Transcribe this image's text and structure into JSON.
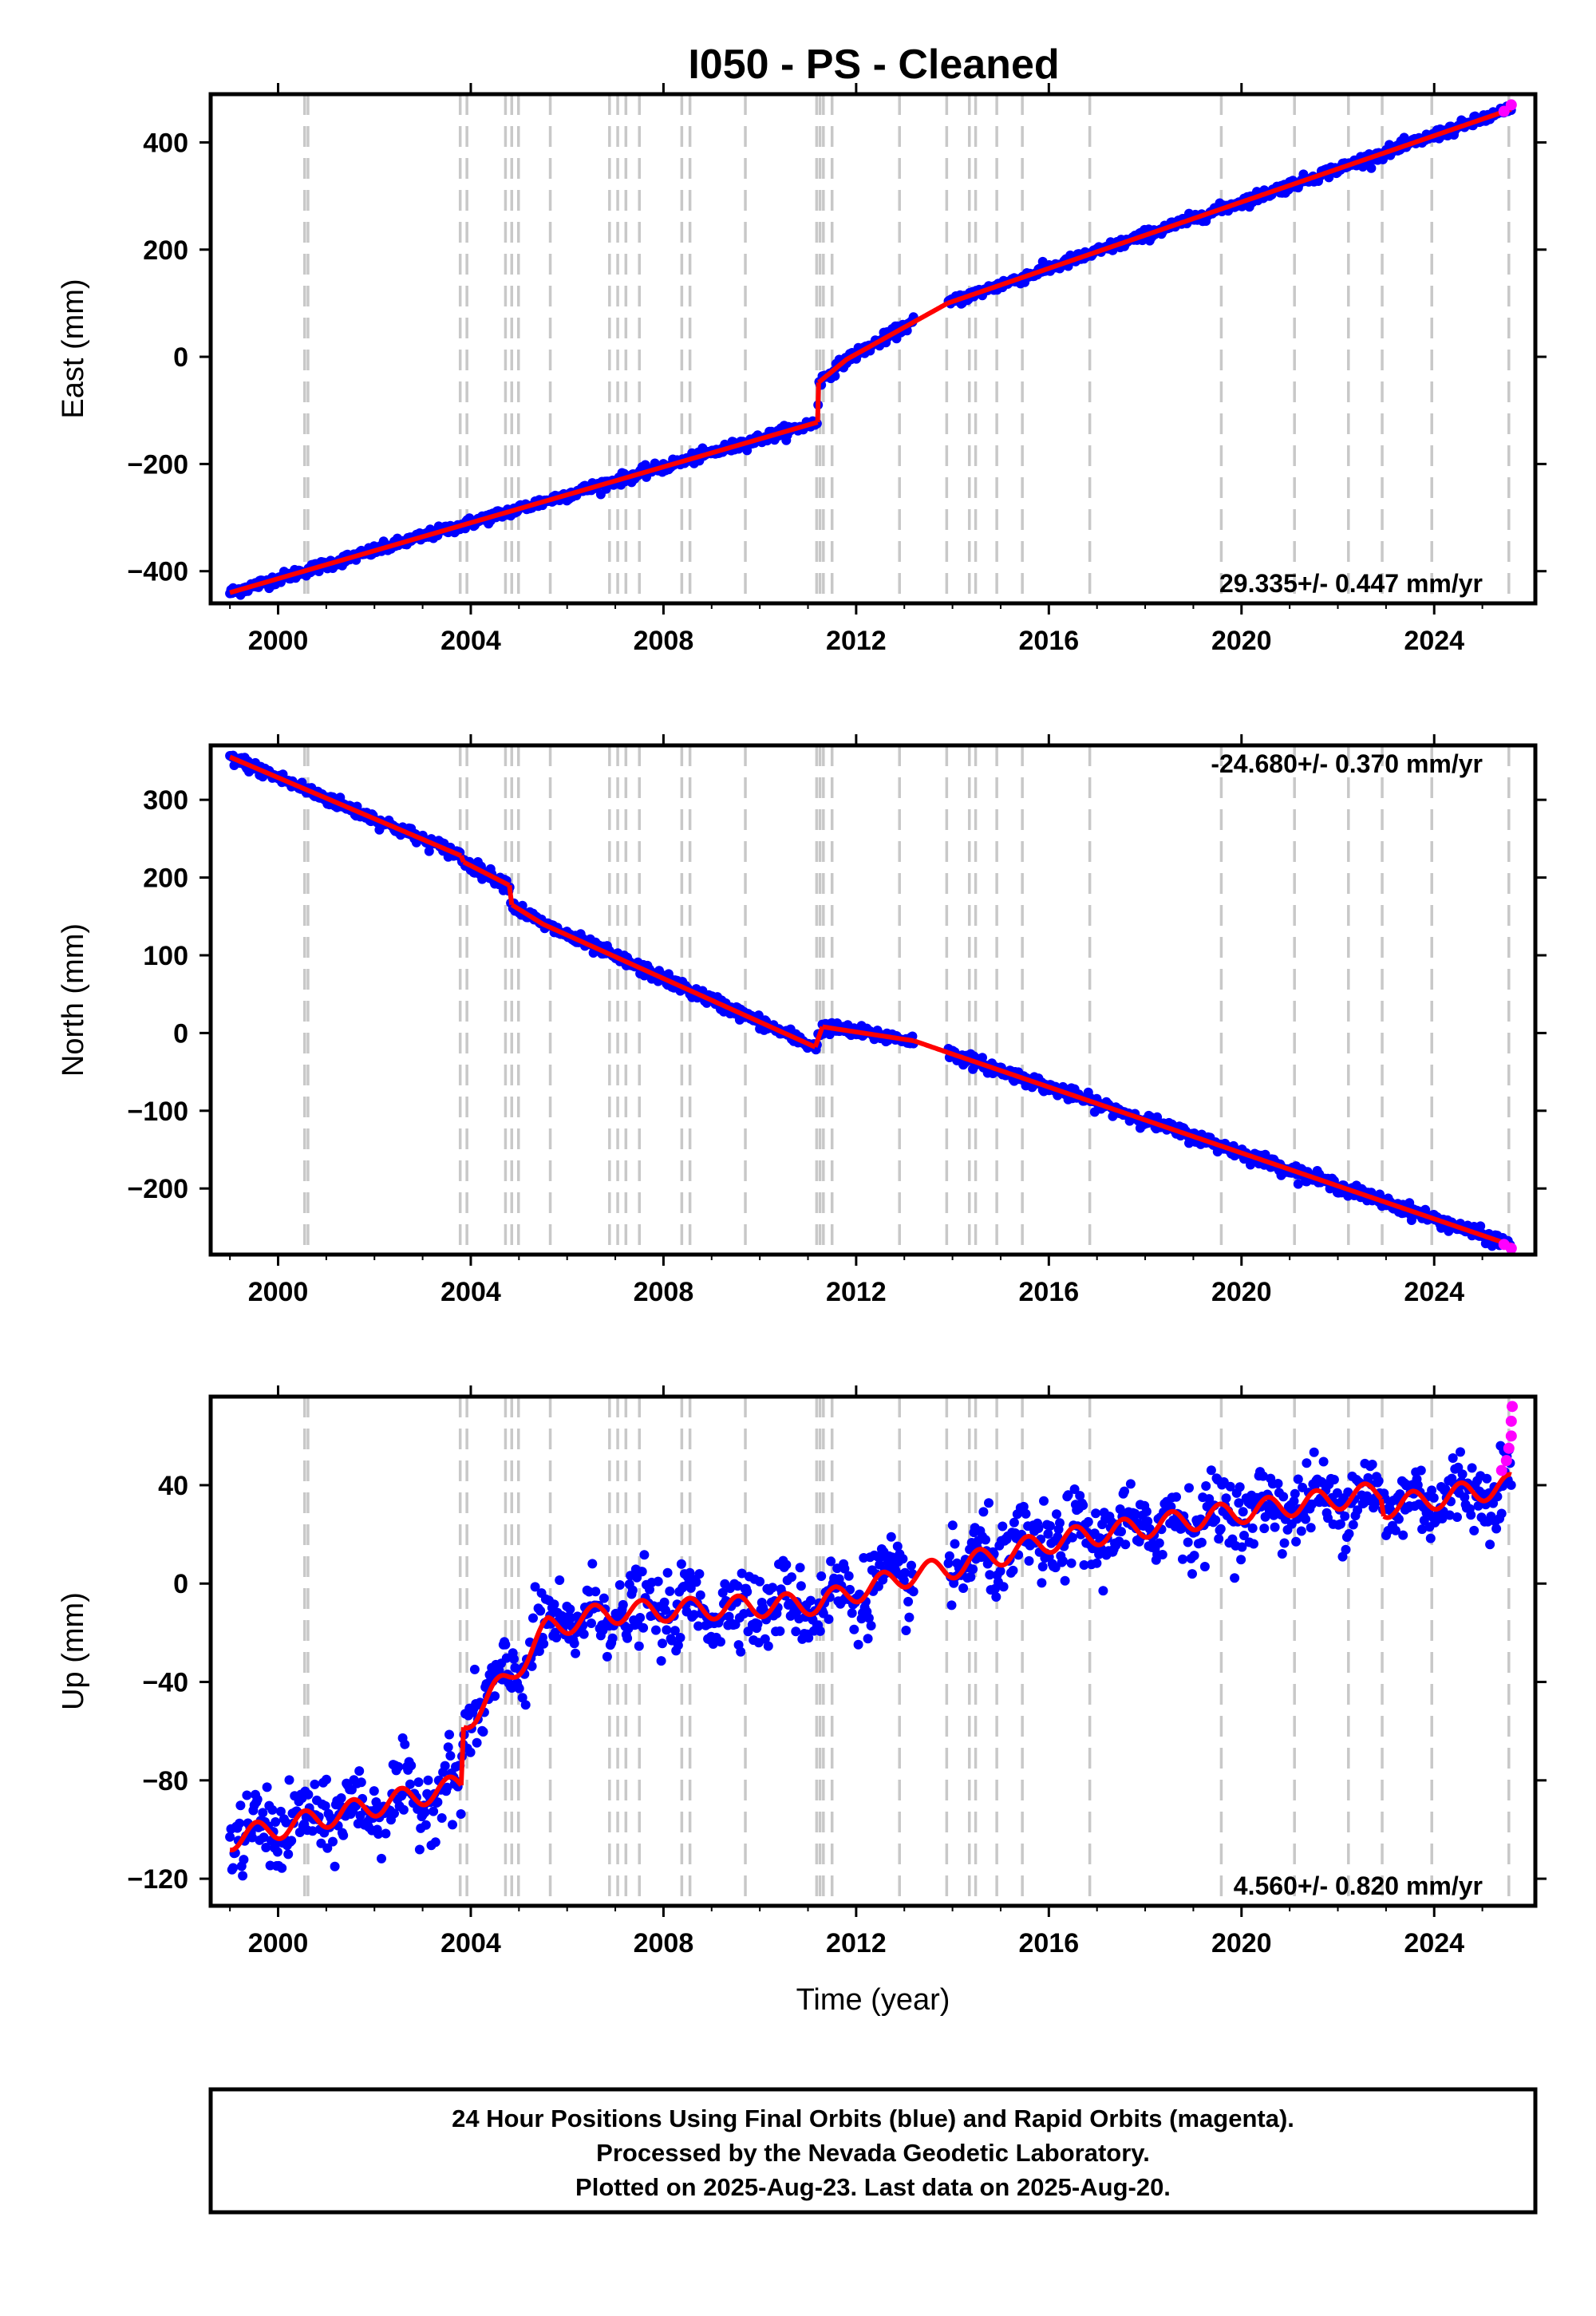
{
  "chart_data": {
    "title": "I050  - PS - Cleaned",
    "x_ticks": [
      "2000",
      "2004",
      "2008",
      "2012",
      "2016",
      "2020",
      "2024"
    ],
    "x_tick_values": [
      2000,
      2004,
      2008,
      2012,
      2016,
      2020,
      2024
    ],
    "xlim": [
      1998.6,
      2026.1
    ],
    "xlabel": "Time (year)",
    "event_lines": [
      2000.55,
      2000.62,
      2003.78,
      2003.92,
      2004.72,
      2004.85,
      2004.99,
      2005.65,
      2006.88,
      2007.05,
      2007.22,
      2007.5,
      2008.38,
      2008.55,
      2009.7,
      2011.18,
      2011.25,
      2011.32,
      2011.5,
      2012.9,
      2013.88,
      2014.35,
      2014.48,
      2014.92,
      2015.45,
      2016.85,
      2019.58,
      2021.1,
      2022.22,
      2022.92,
      2023.95,
      2025.55
    ],
    "panels": [
      {
        "type": "scatter",
        "ylabel": "East (mm)",
        "ylim": [
          -460,
          490
        ],
        "y_ticks": [
          "400",
          "200",
          "0",
          "−200",
          "−400"
        ],
        "y_tick_values": [
          400,
          200,
          0,
          -200,
          -400
        ],
        "rate_text": "29.335+/- 0.447 mm/yr",
        "rate_position": "bottom-right",
        "model_segments": [
          {
            "x": [
              1999.0,
              2011.2
            ],
            "y": [
              -440,
              -122
            ]
          },
          {
            "x": [
              2011.2,
              2011.22
            ],
            "y": [
              -122,
              -48
            ]
          },
          {
            "x": [
              2011.22,
              2011.8,
              2013.2
            ],
            "y": [
              -48,
              -5,
              65
            ]
          },
          {
            "x": [
              2013.2,
              2013.9
            ],
            "y": [
              65,
              100
            ]
          },
          {
            "x": [
              2013.9,
              2025.6
            ],
            "y": [
              100,
              462
            ]
          }
        ],
        "gap": [
          2013.2,
          2013.9
        ],
        "noise": 5,
        "seasonal": 0,
        "rapid_x": [
          2025.45,
          2025.6
        ],
        "rapid_y": [
          458,
          470
        ]
      },
      {
        "type": "scatter",
        "ylabel": "North (mm)",
        "ylim": [
          -285,
          370
        ],
        "y_ticks": [
          "300",
          "200",
          "100",
          "0",
          "−100",
          "−200"
        ],
        "y_tick_values": [
          300,
          200,
          100,
          0,
          -100,
          -200
        ],
        "rate_text": "-24.680+/- 0.370 mm/yr",
        "rate_position": "top-right",
        "model_segments": [
          {
            "x": [
              1999.0,
              2003.8
            ],
            "y": [
              355,
              228
            ]
          },
          {
            "x": [
              2003.8,
              2003.85
            ],
            "y": [
              228,
              220
            ]
          },
          {
            "x": [
              2003.85,
              2004.8
            ],
            "y": [
              220,
              190
            ]
          },
          {
            "x": [
              2004.8,
              2004.85
            ],
            "y": [
              190,
              165
            ]
          },
          {
            "x": [
              2004.85,
              2005.5,
              2011.15
            ],
            "y": [
              165,
              140,
              -18
            ]
          },
          {
            "x": [
              2011.15,
              2011.3
            ],
            "y": [
              -18,
              8
            ]
          },
          {
            "x": [
              2011.3,
              2013.2
            ],
            "y": [
              8,
              -10
            ]
          },
          {
            "x": [
              2013.2,
              2013.9
            ],
            "y": [
              -10,
              -25
            ]
          },
          {
            "x": [
              2013.9,
              2025.6
            ],
            "y": [
              -25,
              -273
            ]
          }
        ],
        "gap": [
          2013.2,
          2013.9
        ],
        "noise": 4,
        "seasonal": 0,
        "rapid_x": [
          2025.45,
          2025.6
        ],
        "rapid_y": [
          -272,
          -277
        ]
      },
      {
        "type": "scatter",
        "ylabel": "Up (mm)",
        "ylim": [
          -131,
          76
        ],
        "y_ticks": [
          "40",
          "0",
          "−40",
          "−80",
          "−120"
        ],
        "y_tick_values": [
          40,
          0,
          -40,
          -80,
          -120
        ],
        "rate_text": "4.560+/- 0.820 mm/yr",
        "rate_position": "bottom-right",
        "model_segments": [
          {
            "x": [
              1999.0,
              2003.8
            ],
            "y": [
              -104,
              -82
            ]
          },
          {
            "x": [
              2003.8,
              2003.85
            ],
            "y": [
              -82,
              -57
            ]
          },
          {
            "x": [
              2003.85,
              2004.8,
              2005.6,
              2006.8
            ],
            "y": [
              -57,
              -38,
              -18,
              -12
            ]
          },
          {
            "x": [
              2006.8,
              2011.2
            ],
            "y": [
              -12,
              -8
            ]
          },
          {
            "x": [
              2011.2,
              2013.2
            ],
            "y": [
              -8,
              4
            ]
          },
          {
            "x": [
              2013.2,
              2013.9
            ],
            "y": [
              4,
              6
            ]
          },
          {
            "x": [
              2013.9,
              2016.0,
              2019.6,
              2022.9
            ],
            "y": [
              6,
              17,
              28,
              37
            ]
          },
          {
            "x": [
              2022.9,
              2022.95
            ],
            "y": [
              37,
              31
            ]
          },
          {
            "x": [
              2022.95,
              2025.6
            ],
            "y": [
              31,
              40
            ]
          }
        ],
        "gap": [
          2013.2,
          2013.9
        ],
        "noise": 7.5,
        "seasonal": 4.5,
        "rapid_x": [
          2025.4,
          2025.5,
          2025.55,
          2025.6,
          2025.6,
          2025.62
        ],
        "rapid_y": [
          46,
          50,
          55,
          60,
          66,
          72
        ]
      }
    ],
    "colors": {
      "final": "#0000ff",
      "rapid": "#ff00ff",
      "model": "#ff0000",
      "events": "#c8c8c8"
    }
  },
  "footer": {
    "line1": "24 Hour Positions Using Final Orbits (blue) and Rapid Orbits (magenta).",
    "line2": "Processed by the Nevada Geodetic Laboratory.",
    "line3": "Plotted on 2025-Aug-23. Last data on 2025-Aug-20."
  }
}
